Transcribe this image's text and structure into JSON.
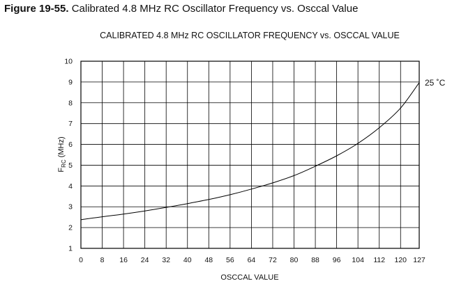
{
  "caption": {
    "figure_number": "Figure 19-55.",
    "text": "Calibrated 4.8 MHz RC Oscillator Frequency vs. Osccal Value"
  },
  "chart_data": {
    "type": "line",
    "title": "CALIBRATED 4.8 MHz RC OSCILLATOR FREQUENCY vs. OSCCAL VALUE",
    "xlabel": "OSCCAL VALUE",
    "ylabel": "F",
    "ylabel_sub": "RC",
    "ylabel_unit": "(MHz)",
    "xlim": [
      0,
      127
    ],
    "ylim": [
      1,
      10
    ],
    "xticks": [
      0,
      8,
      16,
      24,
      32,
      40,
      48,
      56,
      64,
      72,
      80,
      88,
      96,
      104,
      112,
      120,
      127
    ],
    "xtick_labels": [
      "0",
      "8",
      "16",
      "24",
      "32",
      "40",
      "48",
      "56",
      "64",
      "72",
      "80",
      "88",
      "96",
      "104",
      "112",
      "120",
      "127"
    ],
    "yticks": [
      1,
      2,
      3,
      4,
      5,
      6,
      7,
      8,
      9,
      10
    ],
    "ytick_labels": [
      "1",
      "2",
      "3",
      "4",
      "5",
      "6",
      "7",
      "8",
      "9",
      "10"
    ],
    "grid": true,
    "series": [
      {
        "name": "25 ˚C",
        "color": "#000000",
        "x": [
          0,
          8,
          16,
          24,
          32,
          40,
          48,
          56,
          64,
          72,
          80,
          88,
          96,
          104,
          112,
          120,
          127
        ],
        "y": [
          2.38,
          2.52,
          2.65,
          2.8,
          2.97,
          3.15,
          3.35,
          3.58,
          3.85,
          4.15,
          4.5,
          4.95,
          5.45,
          6.05,
          6.8,
          7.75,
          8.97
        ]
      }
    ]
  }
}
